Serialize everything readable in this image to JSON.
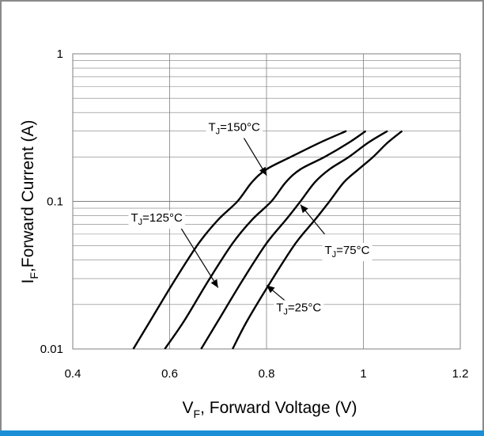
{
  "chart_data": {
    "type": "line",
    "xlabel": {
      "main": "V",
      "sub": "F",
      "rest": ", Forward Voltage (V)"
    },
    "ylabel": {
      "main": "I",
      "sub": "F",
      "rest": ",Forward Current (A)"
    },
    "xlim": [
      0.4,
      1.2
    ],
    "ylim": [
      0.01,
      1
    ],
    "y_scale": "log",
    "grid": true,
    "x_ticks": [
      "0.4",
      "0.6",
      "0.8",
      "1",
      "1.2"
    ],
    "y_ticks": [
      "0.01",
      "0.1",
      "1"
    ],
    "series": [
      {
        "name": "TJ=150°C",
        "label": {
          "main": "T",
          "sub": "J",
          "rest": "=150°C"
        },
        "points": [
          [
            0.525,
            0.01
          ],
          [
            0.56,
            0.0155
          ],
          [
            0.61,
            0.029
          ],
          [
            0.66,
            0.052
          ],
          [
            0.7,
            0.075
          ],
          [
            0.74,
            0.1
          ],
          [
            0.77,
            0.135
          ],
          [
            0.8,
            0.165
          ],
          [
            0.85,
            0.2
          ],
          [
            0.91,
            0.25
          ],
          [
            0.965,
            0.3
          ]
        ]
      },
      {
        "name": "TJ=125°C",
        "label": {
          "main": "T",
          "sub": "J",
          "rest": "=125°C"
        },
        "points": [
          [
            0.59,
            0.01
          ],
          [
            0.63,
            0.0155
          ],
          [
            0.68,
            0.029
          ],
          [
            0.73,
            0.052
          ],
          [
            0.77,
            0.075
          ],
          [
            0.81,
            0.1
          ],
          [
            0.84,
            0.135
          ],
          [
            0.87,
            0.165
          ],
          [
            0.92,
            0.2
          ],
          [
            0.97,
            0.25
          ],
          [
            1.005,
            0.3
          ]
        ]
      },
      {
        "name": "TJ=75°C",
        "label": {
          "main": "T",
          "sub": "J",
          "rest": "=75°C"
        },
        "points": [
          [
            0.665,
            0.01
          ],
          [
            0.7,
            0.0155
          ],
          [
            0.75,
            0.029
          ],
          [
            0.8,
            0.052
          ],
          [
            0.84,
            0.075
          ],
          [
            0.87,
            0.1
          ],
          [
            0.9,
            0.135
          ],
          [
            0.93,
            0.165
          ],
          [
            0.97,
            0.2
          ],
          [
            1.01,
            0.25
          ],
          [
            1.05,
            0.3
          ]
        ]
      },
      {
        "name": "TJ=25°C",
        "label": {
          "main": "T",
          "sub": "J",
          "rest": "=25°C"
        },
        "points": [
          [
            0.73,
            0.01
          ],
          [
            0.76,
            0.0155
          ],
          [
            0.81,
            0.029
          ],
          [
            0.86,
            0.052
          ],
          [
            0.9,
            0.075
          ],
          [
            0.93,
            0.1
          ],
          [
            0.96,
            0.135
          ],
          [
            0.99,
            0.165
          ],
          [
            1.02,
            0.2
          ],
          [
            1.05,
            0.25
          ],
          [
            1.08,
            0.3
          ]
        ]
      }
    ],
    "annotations": [
      {
        "series": "TJ=150°C",
        "arrow_from": [
          0.75,
          0.28
        ],
        "arrow_to": [
          0.8,
          0.15
        ]
      },
      {
        "series": "TJ=125°C",
        "arrow_from": [
          0.615,
          0.073
        ],
        "arrow_to": [
          0.7,
          0.026
        ]
      },
      {
        "series": "TJ=75°C",
        "arrow_from": [
          0.92,
          0.06
        ],
        "arrow_to": [
          0.87,
          0.095
        ]
      },
      {
        "series": "TJ=25°C",
        "arrow_from": [
          0.84,
          0.021
        ],
        "arrow_to": [
          0.8,
          0.027
        ]
      }
    ],
    "colors": {
      "lines": "#000000",
      "grid": "#7f7f7f",
      "frame": "#8a8a8a",
      "accent_bar": "#1a8fd6"
    }
  }
}
